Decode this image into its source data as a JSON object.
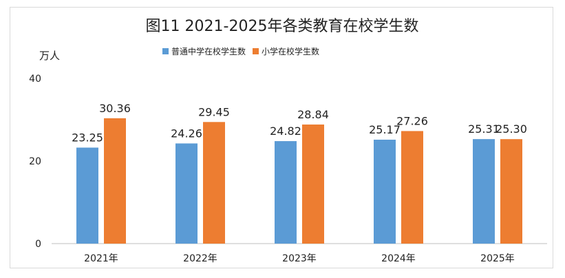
{
  "chart_data": {
    "type": "bar",
    "title": "图11  2021-2025年各类教育在校学生数",
    "ylabel": "万人",
    "xlabel": "",
    "categories": [
      "2021年",
      "2022年",
      "2023年",
      "2024年",
      "2025年"
    ],
    "series": [
      {
        "name": "普通中学在校学生数",
        "values": [
          23.25,
          24.26,
          24.82,
          25.17,
          25.31
        ],
        "labels": [
          "23.25",
          "24.26",
          "24.82",
          "25.17",
          "25.31"
        ],
        "color": "#5b9bd5"
      },
      {
        "name": "小学在校学生数",
        "values": [
          30.36,
          29.45,
          28.84,
          27.26,
          25.3
        ],
        "labels": [
          "30.36",
          "29.45",
          "28.84",
          "27.26",
          "25.30"
        ],
        "color": "#ed7d31"
      }
    ],
    "ylim": [
      0,
      40
    ],
    "yticks": [
      "0",
      "20",
      "40"
    ],
    "grid": false,
    "legend_position": "top"
  }
}
